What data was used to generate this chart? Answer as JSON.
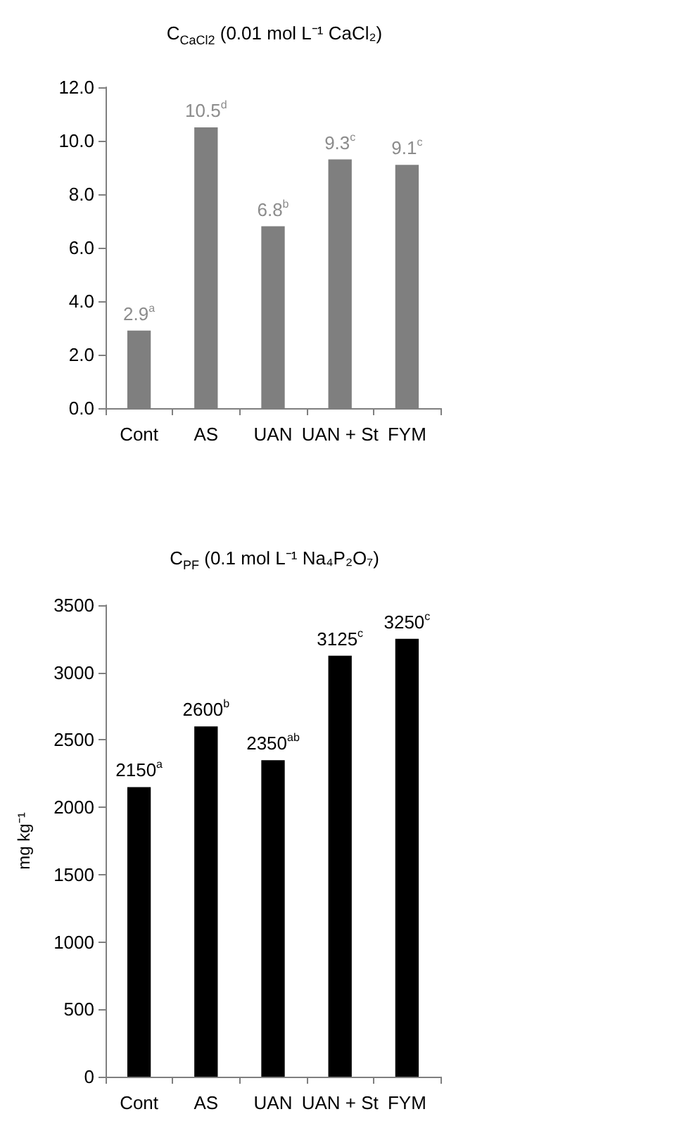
{
  "chart_data": [
    {
      "type": "bar",
      "title": "C$_{CaCl2}$ (0.01 mol L⁻¹ CaCl₂)",
      "categories": [
        "Cont",
        "AS",
        "UAN",
        "UAN + St",
        "FYM"
      ],
      "series": [
        {
          "color": "#7f7f7f",
          "values": [
            2.9,
            10.5,
            6.8,
            9.3,
            9.1
          ],
          "value_labels": [
            "2.9$^{a}$",
            "10.5$^{d}$",
            "6.8$^{b}$",
            "9.3$^{c}$",
            "9.1$^{c}$"
          ]
        }
      ],
      "ylim": [
        0,
        12
      ],
      "yticks": [
        {
          "value": 0,
          "label": "0.0"
        },
        {
          "value": 2,
          "label": "2.0"
        },
        {
          "value": 4,
          "label": "4.0"
        },
        {
          "value": 6,
          "label": "6.0"
        },
        {
          "value": 8,
          "label": "8.0"
        },
        {
          "value": 10,
          "label": "10.0"
        },
        {
          "value": 12,
          "label": "12.0"
        }
      ],
      "grid": false
    },
    {
      "type": "bar",
      "title": "C$_{PF}$ (0.1 mol L⁻¹ Na₄P₂O₇)",
      "ylabel": "mg kg⁻¹",
      "categories": [
        "Cont",
        "AS",
        "UAN",
        "UAN + St",
        "FYM"
      ],
      "series": [
        {
          "color": "#000000",
          "values": [
            2150,
            2600,
            2350,
            3125,
            3250
          ],
          "value_labels": [
            "2150$^{a}$",
            "2600$^{b}$",
            "2350$^{ab}$",
            "3125$^{c}$",
            "3250$^{c}$"
          ]
        }
      ],
      "ylim": [
        0,
        3500
      ],
      "yticks": [
        0,
        500,
        1000,
        1500,
        2000,
        2500,
        3000,
        3500
      ],
      "grid": false
    }
  ]
}
